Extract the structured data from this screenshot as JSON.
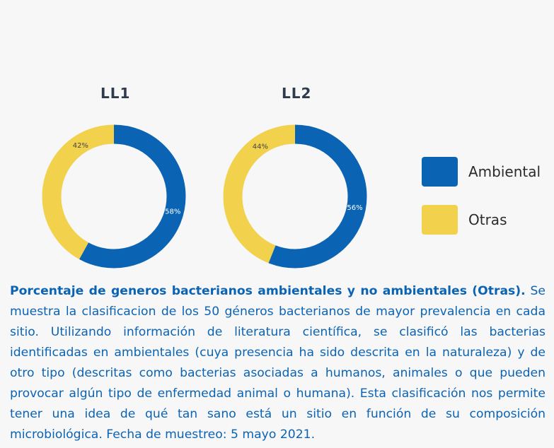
{
  "colors": {
    "ambiental": "#0b63b4",
    "otras": "#f2d14c",
    "background": "#f7f7f7",
    "caption_text": "#0b63b4",
    "title_text": "#2f3b4c"
  },
  "chart_data": [
    {
      "type": "pie",
      "title": "LL1",
      "categories": [
        "Ambiental",
        "Otras"
      ],
      "values": [
        58,
        42
      ],
      "data_labels": [
        "58%",
        "42%"
      ],
      "donut": true
    },
    {
      "type": "pie",
      "title": "LL2",
      "categories": [
        "Ambiental",
        "Otras"
      ],
      "values": [
        56,
        44
      ],
      "data_labels": [
        "56%",
        "44%"
      ],
      "donut": true
    }
  ],
  "legend": {
    "placement": "right",
    "items": [
      {
        "label": "Ambiental",
        "color": "#0b63b4"
      },
      {
        "label": "Otras",
        "color": "#f2d14c"
      }
    ]
  },
  "caption": {
    "title": "Porcentaje de generos bacterianos ambientales y no ambientales (Otras).",
    "body": "Se muestra la clasificacion de los 50 géneros bacterianos de mayor prevalencia en cada sitio. Utilizando información de literatura científica, se clasificó las bacterias identificadas en ambientales (cuya presencia ha sido descrita en la naturaleza) y de otro tipo (descritas como bacterias asociadas a humanos, animales o que pueden provocar algún tipo de enfermedad animal o humana). Esta clasificación nos permite tener una idea de qué tan sano está un sitio en función de su composición microbiológica. Fecha de muestreo: 5 mayo 2021."
  }
}
